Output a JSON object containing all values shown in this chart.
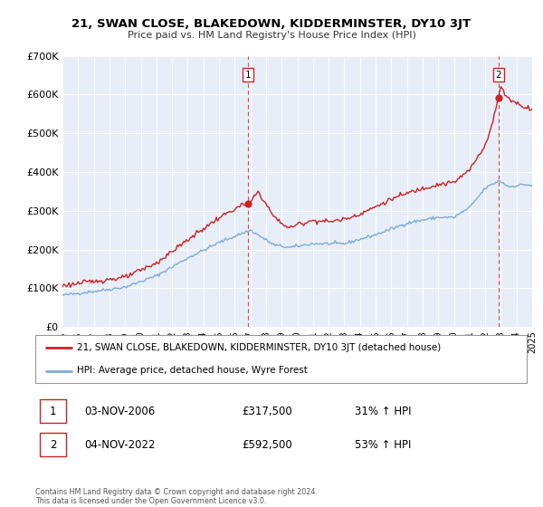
{
  "title": "21, SWAN CLOSE, BLAKEDOWN, KIDDERMINSTER, DY10 3JT",
  "subtitle": "Price paid vs. HM Land Registry's House Price Index (HPI)",
  "background_color": "#ffffff",
  "plot_bg_color": "#e8eef8",
  "hpi_color": "#7eabd4",
  "price_color": "#cc2222",
  "ylim": [
    0,
    700000
  ],
  "yticks": [
    0,
    100000,
    200000,
    300000,
    400000,
    500000,
    600000,
    700000
  ],
  "ytick_labels": [
    "£0",
    "£100K",
    "£200K",
    "£300K",
    "£400K",
    "£500K",
    "£600K",
    "£700K"
  ],
  "sale1_price": 317500,
  "sale2_price": 592500,
  "legend_label_price": "21, SWAN CLOSE, BLAKEDOWN, KIDDERMINSTER, DY10 3JT (detached house)",
  "legend_label_hpi": "HPI: Average price, detached house, Wyre Forest",
  "annotation1_date": "03-NOV-2006",
  "annotation1_price": "£317,500",
  "annotation1_pct": "31% ↑ HPI",
  "annotation2_date": "04-NOV-2022",
  "annotation2_price": "£592,500",
  "annotation2_pct": "53% ↑ HPI",
  "footer1": "Contains HM Land Registry data © Crown copyright and database right 2024.",
  "footer2": "This data is licensed under the Open Government Licence v3.0."
}
